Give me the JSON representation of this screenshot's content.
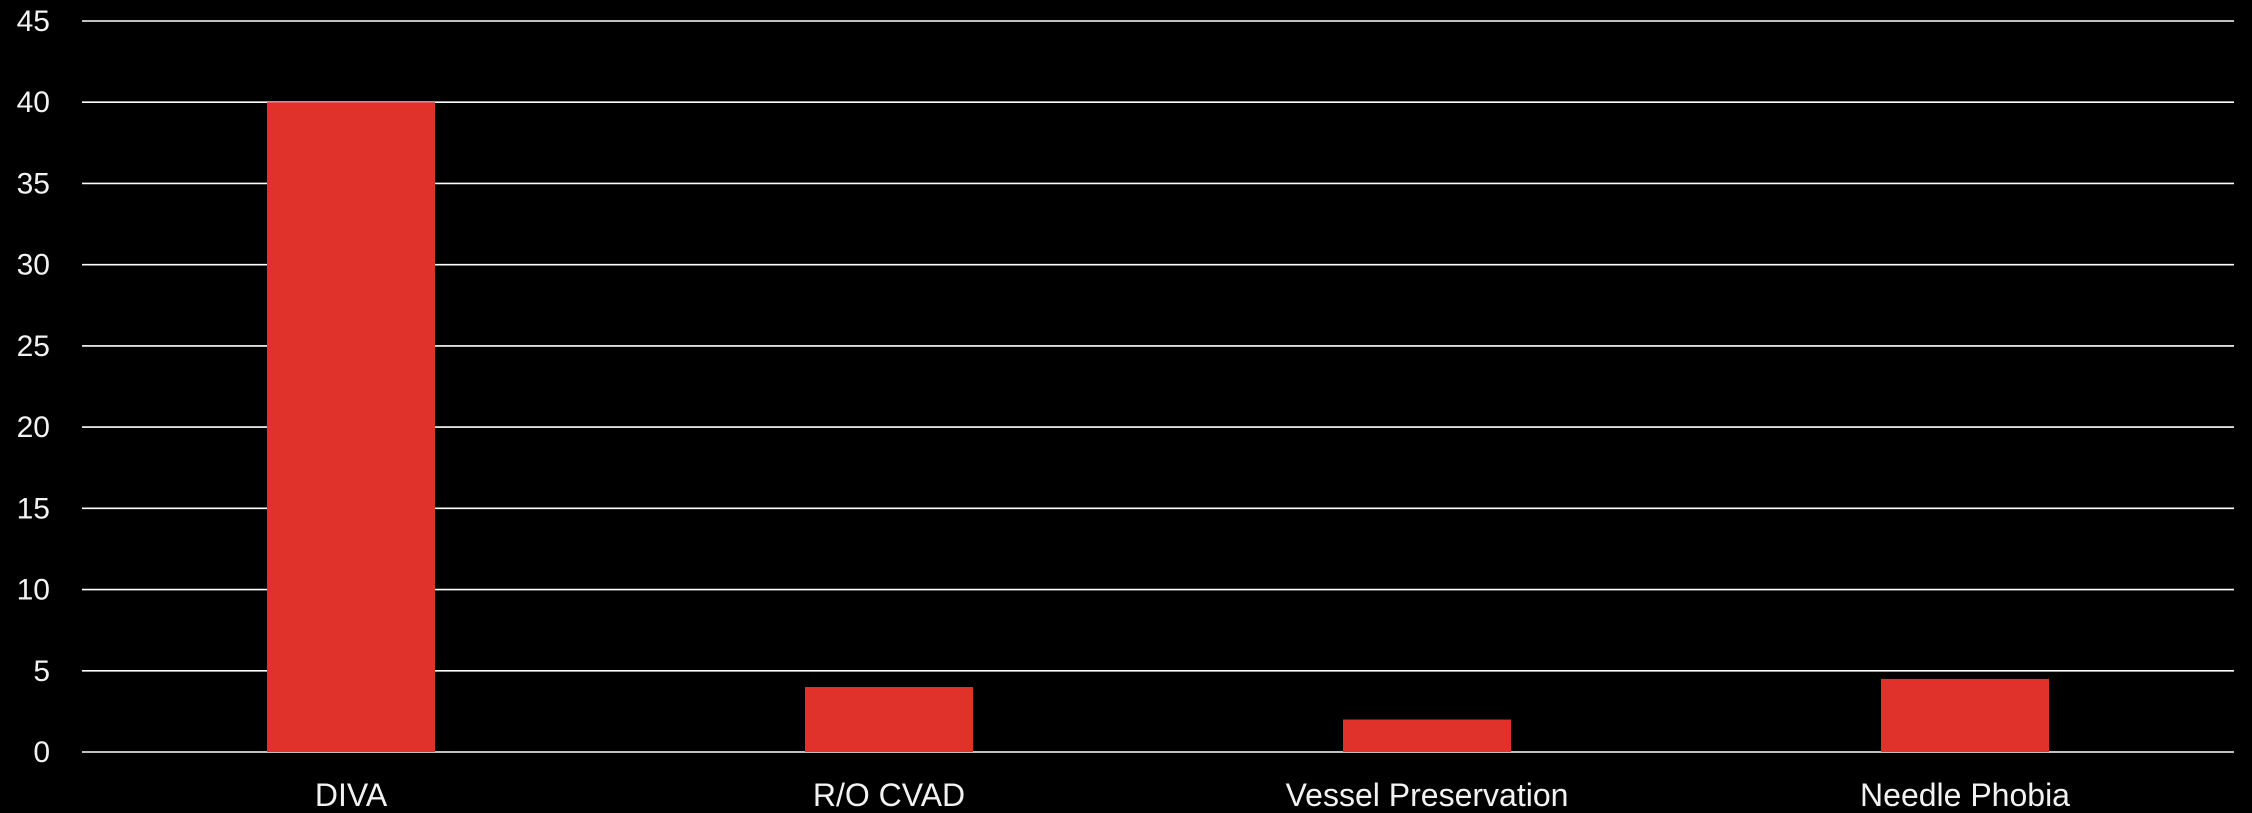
{
  "chart_data": {
    "type": "bar",
    "categories": [
      "DIVA",
      "R/O CVAD",
      "Vessel Preservation",
      "Needle Phobia"
    ],
    "values": [
      40,
      4,
      2,
      4.5
    ],
    "title": "",
    "xlabel": "",
    "ylabel": "",
    "ylim": [
      0,
      45
    ],
    "yticks": [
      0,
      5,
      10,
      15,
      20,
      25,
      30,
      35,
      40,
      45
    ],
    "grid": true,
    "legend": "none",
    "colors": {
      "background": "#000000",
      "bar": "#e0312b",
      "grid": "#ffffff",
      "text": "#f2f2f2"
    }
  }
}
